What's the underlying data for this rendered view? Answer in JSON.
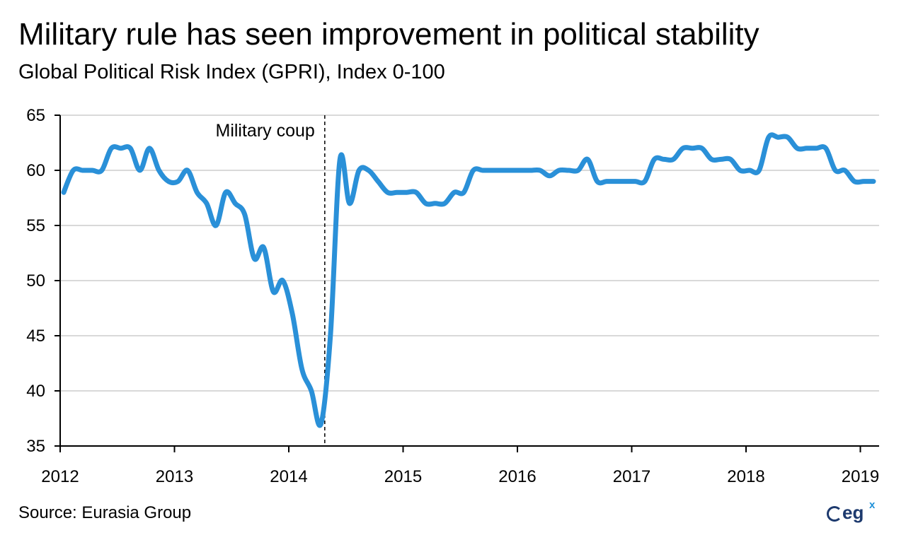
{
  "title": "Military rule has seen improvement in political stability",
  "subtitle": "Global Political Risk Index (GPRI), Index 0-100",
  "source": "Source:  Eurasia Group",
  "logo": {
    "text": "eg",
    "superscript": "x"
  },
  "colors": {
    "line": "#2a90d8",
    "grid": "#d9d9d9",
    "axis": "#000000",
    "logo": "#1d3a6e"
  },
  "chart_data": {
    "type": "line",
    "title": "",
    "xlabel": "",
    "ylabel": "",
    "ylim": [
      35,
      65
    ],
    "xlim": [
      "2012-01",
      "2019-02"
    ],
    "yticks": [
      "35",
      "40",
      "45",
      "50",
      "55",
      "60",
      "65"
    ],
    "xticks": [
      "2012",
      "2013",
      "2014",
      "2015",
      "2016",
      "2017",
      "2018",
      "2019"
    ],
    "grid": "horizontal",
    "annotation": {
      "label": "Military coup",
      "x": "2014-05"
    },
    "series": [
      {
        "x": [
          "2012-01",
          "2012-02",
          "2012-03",
          "2012-04",
          "2012-05",
          "2012-06",
          "2012-07",
          "2012-08",
          "2012-09",
          "2012-10",
          "2012-11",
          "2012-12",
          "2013-01",
          "2013-02",
          "2013-03",
          "2013-04",
          "2013-05",
          "2013-06",
          "2013-07",
          "2013-08",
          "2013-09",
          "2013-10",
          "2013-11",
          "2013-12",
          "2014-01",
          "2014-02",
          "2014-03",
          "2014-04",
          "2014-05",
          "2014-06",
          "2014-07",
          "2014-08",
          "2014-09",
          "2014-10",
          "2014-11",
          "2014-12",
          "2015-01",
          "2015-02",
          "2015-03",
          "2015-04",
          "2015-05",
          "2015-06",
          "2015-07",
          "2015-08",
          "2015-09",
          "2015-10",
          "2015-11",
          "2015-12",
          "2016-01",
          "2016-02",
          "2016-03",
          "2016-04",
          "2016-05",
          "2016-06",
          "2016-07",
          "2016-08",
          "2016-09",
          "2016-10",
          "2016-11",
          "2016-12",
          "2017-01",
          "2017-02",
          "2017-03",
          "2017-04",
          "2017-05",
          "2017-06",
          "2017-07",
          "2017-08",
          "2017-09",
          "2017-10",
          "2017-11",
          "2017-12",
          "2018-01",
          "2018-02",
          "2018-03",
          "2018-04",
          "2018-05",
          "2018-06",
          "2018-07",
          "2018-08",
          "2018-09",
          "2018-10",
          "2018-11",
          "2018-12",
          "2019-01",
          "2019-02"
        ],
        "values": [
          58,
          60,
          60,
          60,
          60,
          62,
          62,
          62,
          60,
          62,
          60,
          59,
          59,
          60,
          58,
          57,
          55,
          58,
          57,
          56,
          52,
          53,
          49,
          50,
          47,
          42,
          40,
          37,
          45,
          61,
          57,
          60,
          60,
          59,
          58,
          58,
          58,
          58,
          57,
          57,
          57,
          58,
          58,
          60,
          60,
          60,
          60,
          60,
          60,
          60,
          60,
          59.5,
          60,
          60,
          60,
          61,
          59,
          59,
          59,
          59,
          59,
          59,
          61,
          61,
          61,
          62,
          62,
          62,
          61,
          61,
          61,
          60,
          60,
          60,
          63,
          63,
          63,
          62,
          62,
          62,
          62,
          60,
          60,
          59,
          59,
          59
        ]
      }
    ]
  }
}
